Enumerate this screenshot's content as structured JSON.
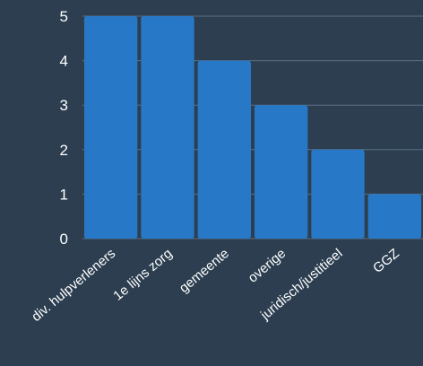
{
  "chart_data": {
    "type": "bar",
    "categories": [
      "div. hulpverleners",
      "1e lijns zorg",
      "gemeente",
      "overige",
      "juridisch/justitieel",
      "GGZ"
    ],
    "values": [
      5,
      5,
      4,
      3,
      2,
      1
    ],
    "title": "",
    "xlabel": "",
    "ylabel": "",
    "ylim": [
      0,
      5
    ],
    "yticks": [
      0,
      1,
      2,
      3,
      4,
      5
    ],
    "grid": true,
    "legend": "none",
    "colors": {
      "background": "#2c3e50",
      "bar": "#2878c8",
      "grid": "#5b7085",
      "text": "#ffffff"
    }
  }
}
